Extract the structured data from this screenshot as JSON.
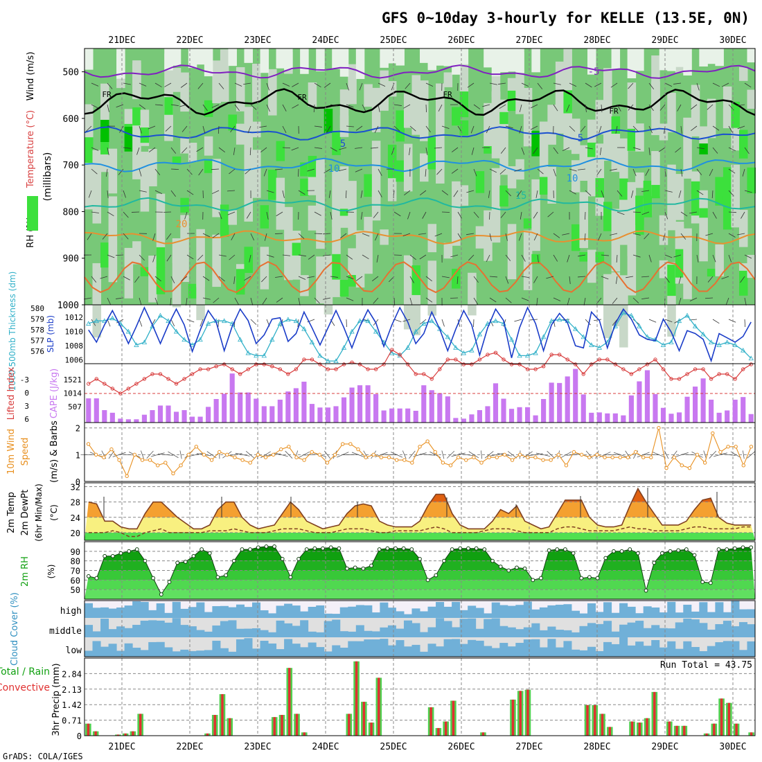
{
  "title": "GFS 0~10day 3-hourly for KELLE (13.5E, 0N)",
  "footer": "GrADS: COLA/IGES",
  "run_total": "Run Total = 43.75",
  "colors": {
    "rh_light": "#c8d8c8",
    "rh_mid": "#78c878",
    "rh_high": "#3ce03c",
    "rh_top": "#00c000",
    "slp": "#1a3cc8",
    "thickness": "#30b0c8",
    "cape": "#c878f0",
    "lifted": "#d83c3c",
    "wind": "#e89020",
    "temp_hot": "#e06010",
    "temp_warm": "#f4a030",
    "temp_yel": "#f8f080",
    "temp_green": "#50e050",
    "rh2m": "#00a000",
    "cloud_blue": "#70b0d8",
    "cloud_gray": "#e0e0e0",
    "precip_green": "#50d050",
    "precip_red": "#e03030"
  },
  "chart_data": [
    {
      "type": "heatmap",
      "panel": "upper-air",
      "ylabel_rh": "RH (%)",
      "ylabel_temp": "Temperature (°C)",
      "ylabel_wind": "Wind (m/s)",
      "ylabel_units": "(millibars)",
      "y_ticks": [
        "500",
        "600",
        "700",
        "800",
        "900",
        "1000"
      ],
      "ylim": [
        1000,
        450
      ],
      "x_ticks": [
        "21DEC",
        "22DEC",
        "23DEC",
        "24DEC",
        "25DEC",
        "26DEC",
        "27DEC",
        "28DEC",
        "29DEC",
        "30DEC"
      ],
      "freezing_label": "FR",
      "isotherm_labels": [
        "-5",
        "5",
        "10",
        "15",
        "20"
      ],
      "isotherms": [
        {
          "name": "-5",
          "level": 500,
          "color": "#8020c0"
        },
        {
          "name": "0",
          "level": 565,
          "color": "#000000"
        },
        {
          "name": "5",
          "level": 632,
          "color": "#1a50d0"
        },
        {
          "name": "10",
          "level": 700,
          "color": "#2090e0"
        },
        {
          "name": "15",
          "level": 785,
          "color": "#20b8a0"
        },
        {
          "name": "20",
          "level": 855,
          "color": "#e89030"
        }
      ]
    },
    {
      "type": "line",
      "panel": "slp-thickness",
      "ylabel_left": "1000-500mb Thickness (dm)",
      "ylabel_right": "SLP (mb)",
      "y_ticks_left": [
        "580",
        "579",
        "578",
        "577",
        "576"
      ],
      "y_ticks_right": [
        "1012",
        "1010",
        "1008",
        "1006"
      ],
      "ylim_slp": [
        1005.8,
        1014
      ],
      "slp": [
        1010.5,
        1008.8,
        1011.2,
        1013.2,
        1011.0,
        1008.6,
        1011.0,
        1013.6,
        1011.2,
        1008.6,
        1011.2,
        1013.4,
        1011.2,
        1007.5,
        1010.5,
        1013.2,
        1011.6,
        1007.6,
        1011.0,
        1013.4,
        1011.8,
        1008.6,
        1009.8,
        1012.0,
        1012.2,
        1008.9,
        1010.0,
        1013.0,
        1010.8,
        1008.4,
        1010.8,
        1013.2,
        1010.8,
        1008.0,
        1011.0,
        1013.3,
        1011.5,
        1008.2,
        1011.2,
        1013.6,
        1011.6,
        1008.6,
        1010.0,
        1013.0,
        1010.6,
        1007.6,
        1010.6,
        1013.2,
        1011.2,
        1007.0,
        1010.8,
        1013.4,
        1011.8,
        1006.6,
        1010.8,
        1013.6,
        1011.4,
        1007.6,
        1011.2,
        1012.8,
        1011.5,
        1008.3,
        1008.0,
        1013.0,
        1011.8,
        1008.0,
        1011.4,
        1013.4,
        1012.0,
        1009.8,
        1009.2,
        1009.0,
        1012.0,
        1010.2,
        1007.6,
        1010.4,
        1010.0,
        1009.2,
        1006.2,
        1010.0,
        1009.4,
        1008.8,
        1009.6,
        1011.6
      ],
      "thickness": [
        578.6,
        578.8,
        578.8,
        579.0,
        578.6,
        578.0,
        577.0,
        577.2,
        578.4,
        579.2,
        578.8,
        578.0,
        577.4,
        577.0,
        577.4,
        578.6,
        578.8,
        578.8,
        578.6,
        577.4,
        576.4,
        576.2,
        576.2,
        577.4,
        578.6,
        578.9,
        578.8,
        578.2,
        577.2,
        576.2,
        575.8,
        575.8,
        576.8,
        578.0,
        578.8,
        578.8,
        578.0,
        577.2,
        576.4,
        576.2,
        576.8,
        578.0,
        578.6,
        578.8,
        578.2,
        577.6,
        576.8,
        576.4,
        576.6,
        577.8,
        578.6,
        578.8,
        578.6,
        577.4,
        576.2,
        576.2,
        576.4,
        577.6,
        578.8,
        578.9,
        578.8,
        578.2,
        577.6,
        577.0,
        576.8,
        577.2,
        578.4,
        579.4,
        579.2,
        578.4,
        577.6,
        577.4,
        577.0,
        577.2,
        578.8,
        579.2,
        578.4,
        577.8,
        577.2,
        577.0,
        577.2,
        577.0,
        576.6,
        576.0
      ],
      "ylim_thickness": [
        575.6,
        580
      ]
    },
    {
      "type": "bar",
      "panel": "cape-lifted",
      "ylabel_left": "Lifted Index",
      "ylabel_right": "CAPE (J/kg)",
      "y_ticks_left": [
        "-3",
        "0",
        "3",
        "6"
      ],
      "y_ticks_right": [
        "1521",
        "1014",
        "507"
      ],
      "cape": [
        740,
        740,
        380,
        300,
        120,
        100,
        100,
        240,
        380,
        520,
        520,
        330,
        380,
        180,
        180,
        480,
        720,
        880,
        1500,
        920,
        920,
        730,
        500,
        500,
        700,
        950,
        1050,
        1250,
        570,
        460,
        460,
        500,
        770,
        1070,
        1140,
        1140,
        870,
        370,
        430,
        430,
        430,
        360,
        1140,
        990,
        900,
        800,
        140,
        120,
        250,
        380,
        500,
        1200,
        730,
        420,
        470,
        470,
        220,
        720,
        1220,
        1210,
        1410,
        1640,
        860,
        300,
        310,
        280,
        280,
        220,
        830,
        1260,
        1600,
        870,
        450,
        270,
        310,
        790,
        1100,
        1350,
        700,
        300,
        370,
        700,
        780,
        260
      ],
      "lifted": [
        -1.0,
        -1.5,
        -1.0,
        -0.5,
        0.0,
        -0.5,
        -1.0,
        -1.5,
        -2.0,
        -2.0,
        -1.5,
        -1.0,
        -1.5,
        -2.0,
        -2.5,
        -2.5,
        -2.8,
        -3.0,
        -2.5,
        -2.0,
        -2.5,
        -3.0,
        -3.0,
        -2.8,
        -2.5,
        -2.0,
        -2.5,
        -3.5,
        -3.5,
        -3.0,
        -2.5,
        -2.5,
        -3.0,
        -3.2,
        -3.0,
        -2.5,
        -2.5,
        -3.0,
        -4.5,
        -4.0,
        -3.0,
        -2.0,
        -2.0,
        -1.5,
        -2.5,
        -3.5,
        -3.5,
        -3.0,
        -3.0,
        -3.5,
        -4.0,
        -4.2,
        -3.5,
        -3.0,
        -3.0,
        -2.5,
        -2.5,
        -2.8,
        -4.0,
        -4.0,
        -3.5,
        -3.0,
        -2.0,
        -3.0,
        -3.5,
        -3.5,
        -3.0,
        -2.5,
        -2.0,
        -2.5,
        -3.0,
        -3.5,
        -2.5,
        -1.5,
        -1.5,
        -2.0,
        -2.5,
        -2.5,
        -1.5,
        -2.0,
        -2.0,
        -1.5,
        -2.5,
        -3.0
      ],
      "ylim_cape": [
        0,
        1800
      ]
    },
    {
      "type": "line",
      "panel": "10m-wind",
      "ylabel": "10m Wind Speed (m/s) & Barbs",
      "y_ticks": [
        "2",
        "1",
        "0"
      ],
      "ylim": [
        0,
        2.2
      ],
      "values": [
        1.4,
        1.0,
        0.9,
        1.2,
        0.8,
        0.2,
        1.0,
        0.8,
        0.8,
        0.6,
        0.7,
        0.3,
        0.6,
        1.0,
        1.3,
        1.0,
        0.8,
        1.1,
        1.0,
        0.9,
        0.8,
        0.7,
        1.0,
        0.9,
        1.0,
        1.2,
        1.3,
        0.9,
        0.8,
        1.1,
        1.0,
        0.7,
        1.0,
        1.4,
        1.4,
        1.2,
        0.9,
        1.0,
        0.9,
        0.9,
        0.8,
        0.8,
        0.7,
        1.3,
        1.5,
        1.1,
        0.7,
        0.6,
        0.9,
        0.8,
        0.9,
        0.7,
        0.9,
        0.9,
        1.0,
        0.8,
        1.0,
        0.9,
        0.9,
        0.8,
        0.8,
        1.0,
        0.6,
        1.1,
        1.0,
        0.9,
        1.0,
        0.9,
        0.9,
        0.9,
        0.9,
        1.1,
        0.9,
        0.9,
        2.0,
        0.5,
        0.9,
        0.6,
        0.5,
        1.0,
        0.7,
        1.8,
        1.1,
        1.3,
        1.3,
        0.6,
        1.3
      ]
    },
    {
      "type": "area",
      "panel": "2m-temp",
      "ylabel": "2m Temp 2m DewPt (6hr Min/Max) (°C)",
      "unit": "(°C)",
      "y_ticks": [
        "32",
        "28",
        "24",
        "20"
      ],
      "ylim": [
        18,
        33
      ],
      "temp": [
        28,
        27.5,
        23,
        23,
        21.5,
        21,
        21,
        25,
        28,
        28,
        26,
        24,
        22.5,
        21,
        21,
        22,
        26,
        28,
        28,
        24,
        22,
        21,
        21.5,
        22,
        25,
        28,
        26,
        23,
        22,
        21,
        21.5,
        22,
        25,
        27,
        27.5,
        27,
        23,
        22,
        21.5,
        21.5,
        21.5,
        23,
        27,
        30,
        30,
        25,
        22,
        21,
        21,
        21,
        23,
        26,
        25,
        27,
        23,
        22,
        21,
        21.5,
        25,
        28.5,
        28.5,
        28.5,
        24,
        22,
        21.5,
        21.5,
        22,
        27,
        31.5,
        28,
        25,
        22,
        22,
        22,
        23,
        26,
        28.5,
        29,
        24,
        22.5,
        22,
        22,
        22
      ],
      "dewpt": [
        20,
        20,
        20,
        20.5,
        20,
        19,
        19,
        20,
        20.5,
        21,
        20,
        20,
        20,
        20,
        20,
        20.5,
        20.5,
        20.5,
        21,
        20.5,
        20,
        20,
        20,
        20.5,
        21,
        21,
        21,
        20.5,
        20,
        20,
        20,
        20.5,
        21,
        21,
        21,
        20.5,
        20,
        20,
        20.5,
        20.5,
        20.5,
        20.5,
        21,
        21.5,
        21,
        20,
        20,
        20,
        20,
        20.5,
        21,
        21,
        21,
        20.5,
        20,
        20,
        20,
        20,
        21,
        21.5,
        21.5,
        21,
        20.5,
        20.5,
        20.5,
        20.5,
        21,
        21.5,
        21,
        21,
        20.5,
        20.5,
        20.5,
        20.5,
        21,
        21.5,
        21.5,
        21,
        21,
        21,
        21,
        21.5,
        21.5
      ]
    },
    {
      "type": "area",
      "panel": "2m-rh",
      "ylabel": "2m RH",
      "unit": "(%)",
      "y_ticks": [
        "90",
        "80",
        "70",
        "60",
        "50"
      ],
      "ylim": [
        40,
        100
      ],
      "values": [
        64,
        62,
        85,
        85,
        88,
        90,
        92,
        80,
        62,
        45,
        58,
        78,
        79,
        85,
        92,
        88,
        63,
        65,
        80,
        92,
        92,
        94,
        95,
        95,
        82,
        63,
        82,
        92,
        93,
        93,
        94,
        93,
        72,
        73,
        72,
        75,
        92,
        93,
        93,
        93,
        92,
        82,
        60,
        65,
        80,
        92,
        93,
        93,
        93,
        92,
        80,
        74,
        70,
        73,
        72,
        60,
        62,
        91,
        92,
        92,
        88,
        62,
        63,
        62,
        83,
        90,
        90,
        92,
        88,
        49,
        78,
        88,
        90,
        91,
        92,
        86,
        58,
        57,
        92,
        92,
        93,
        94,
        94
      ]
    },
    {
      "type": "heatmap",
      "panel": "cloud-cover",
      "ylabel": "Cloud Cover (%)",
      "row_labels": [
        "high",
        "middle",
        "low"
      ]
    },
    {
      "type": "bar",
      "panel": "precip",
      "ylabel_total": "Total / Rain",
      "ylabel_conv": "Convective",
      "ylabel_precip": "3hr Precip (mm)",
      "y_ticks": [
        "2.84",
        "2.13",
        "1.42",
        "0.71",
        "0"
      ],
      "ylim": [
        0,
        3.55
      ],
      "total": [
        0.55,
        0.2,
        0,
        0,
        0.05,
        0.1,
        0.2,
        1.0,
        0,
        0,
        0,
        0,
        0,
        0,
        0,
        0,
        0.1,
        0.95,
        1.9,
        0.8,
        0,
        0,
        0,
        0,
        0,
        0.85,
        0.95,
        3.1,
        1.0,
        0.15,
        0,
        0,
        0,
        0,
        0,
        1.0,
        3.4,
        1.55,
        0.6,
        2.65,
        0,
        0,
        0,
        0,
        0,
        0,
        1.3,
        0.35,
        0.65,
        1.6,
        0,
        0,
        0,
        0.15,
        0,
        0,
        0,
        1.65,
        2.05,
        2.1,
        0,
        0,
        0,
        0,
        0,
        0,
        0,
        1.4,
        1.4,
        1.0,
        0.4,
        0,
        0,
        0.65,
        0.6,
        0.8,
        2.0,
        0,
        0.65,
        0.45,
        0.45,
        0,
        0,
        0.1,
        0.55,
        1.7,
        1.5,
        0.55,
        0,
        0.15
      ]
    }
  ]
}
